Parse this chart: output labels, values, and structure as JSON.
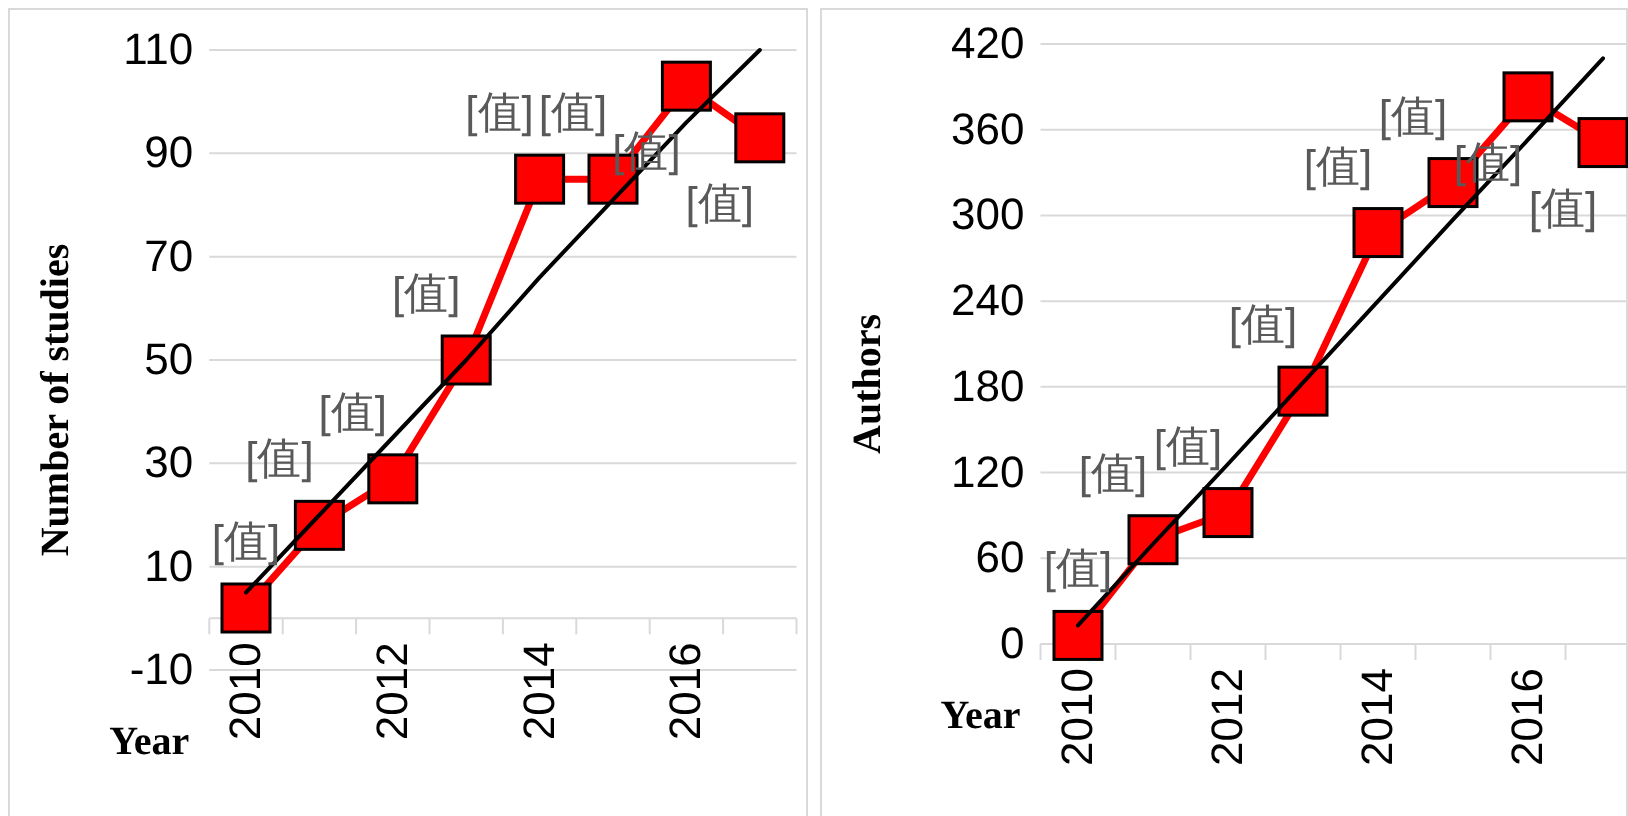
{
  "chart_data": [
    {
      "type": "line",
      "xlabel": "Year",
      "ylabel": "Number of studies",
      "categories": [
        "2010",
        null,
        "2012",
        null,
        "2014",
        null,
        "2016",
        null
      ],
      "ylim": [
        -10,
        110
      ],
      "yticks": [
        -10,
        10,
        30,
        50,
        70,
        90,
        110
      ],
      "grid": "y",
      "series": [
        {
          "color": "#ff0000",
          "marker": "square",
          "values": [
            2,
            18,
            27,
            50,
            85,
            85,
            103,
            93
          ],
          "value_labels": [
            "[值]",
            "[值]",
            "[值]",
            "[值]",
            "[值]",
            "[值]",
            "[值]",
            "[值]"
          ]
        },
        {
          "color": "#000000",
          "marker": "none",
          "values": [
            5,
            20,
            35,
            50,
            66,
            81,
            96,
            110
          ]
        }
      ]
    },
    {
      "type": "line",
      "xlabel": "Year",
      "ylabel": "Authors",
      "categories": [
        "2010",
        null,
        "2012",
        null,
        "2014",
        null,
        "2016",
        null
      ],
      "ylim": [
        0,
        420
      ],
      "yticks": [
        0,
        60,
        120,
        180,
        240,
        300,
        360,
        420
      ],
      "grid": "y",
      "series": [
        {
          "color": "#ff0000",
          "marker": "square",
          "values": [
            6,
            73,
            92,
            177,
            288,
            323,
            383,
            351
          ],
          "value_labels": [
            "[值]",
            "[值]",
            "[值]",
            "[值]",
            "[值]",
            "[值]",
            "[值]",
            "[值]"
          ]
        },
        {
          "color": "#000000",
          "marker": "none",
          "values": [
            13,
            70,
            126,
            183,
            240,
            297,
            353,
            410
          ]
        }
      ]
    }
  ]
}
